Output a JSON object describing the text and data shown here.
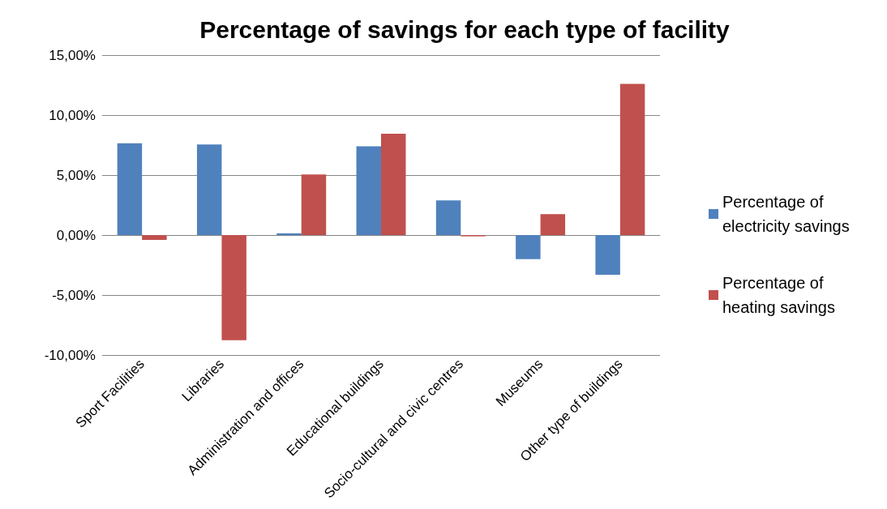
{
  "chart_data": {
    "type": "bar",
    "title": "Percentage of savings for each type of facility",
    "categories": [
      "Sport Facilities",
      "Libraries",
      "Administration and offices",
      "Educational buildings",
      "Socio-cultural and civic centres",
      "Museums",
      "Other type of buildings"
    ],
    "series": [
      {
        "name": "Percentage of electricity savings",
        "color": "#4f81bd",
        "values": [
          7.65,
          7.55,
          0.15,
          7.4,
          2.9,
          -2.0,
          -3.3
        ]
      },
      {
        "name": "Percentage of heating savings",
        "color": "#c0504d",
        "values": [
          -0.4,
          -8.75,
          5.05,
          8.45,
          -0.1,
          1.75,
          12.6
        ]
      }
    ],
    "ylim": [
      -10,
      15
    ],
    "yticks": [
      {
        "value": -10,
        "label": "-10,00%"
      },
      {
        "value": -5,
        "label": "-5,00%"
      },
      {
        "value": 0,
        "label": "0,00%"
      },
      {
        "value": 5,
        "label": "5,00%"
      },
      {
        "value": 10,
        "label": "10,00%"
      },
      {
        "value": 15,
        "label": "15,00%"
      }
    ],
    "grid": "y",
    "legend": "right"
  }
}
